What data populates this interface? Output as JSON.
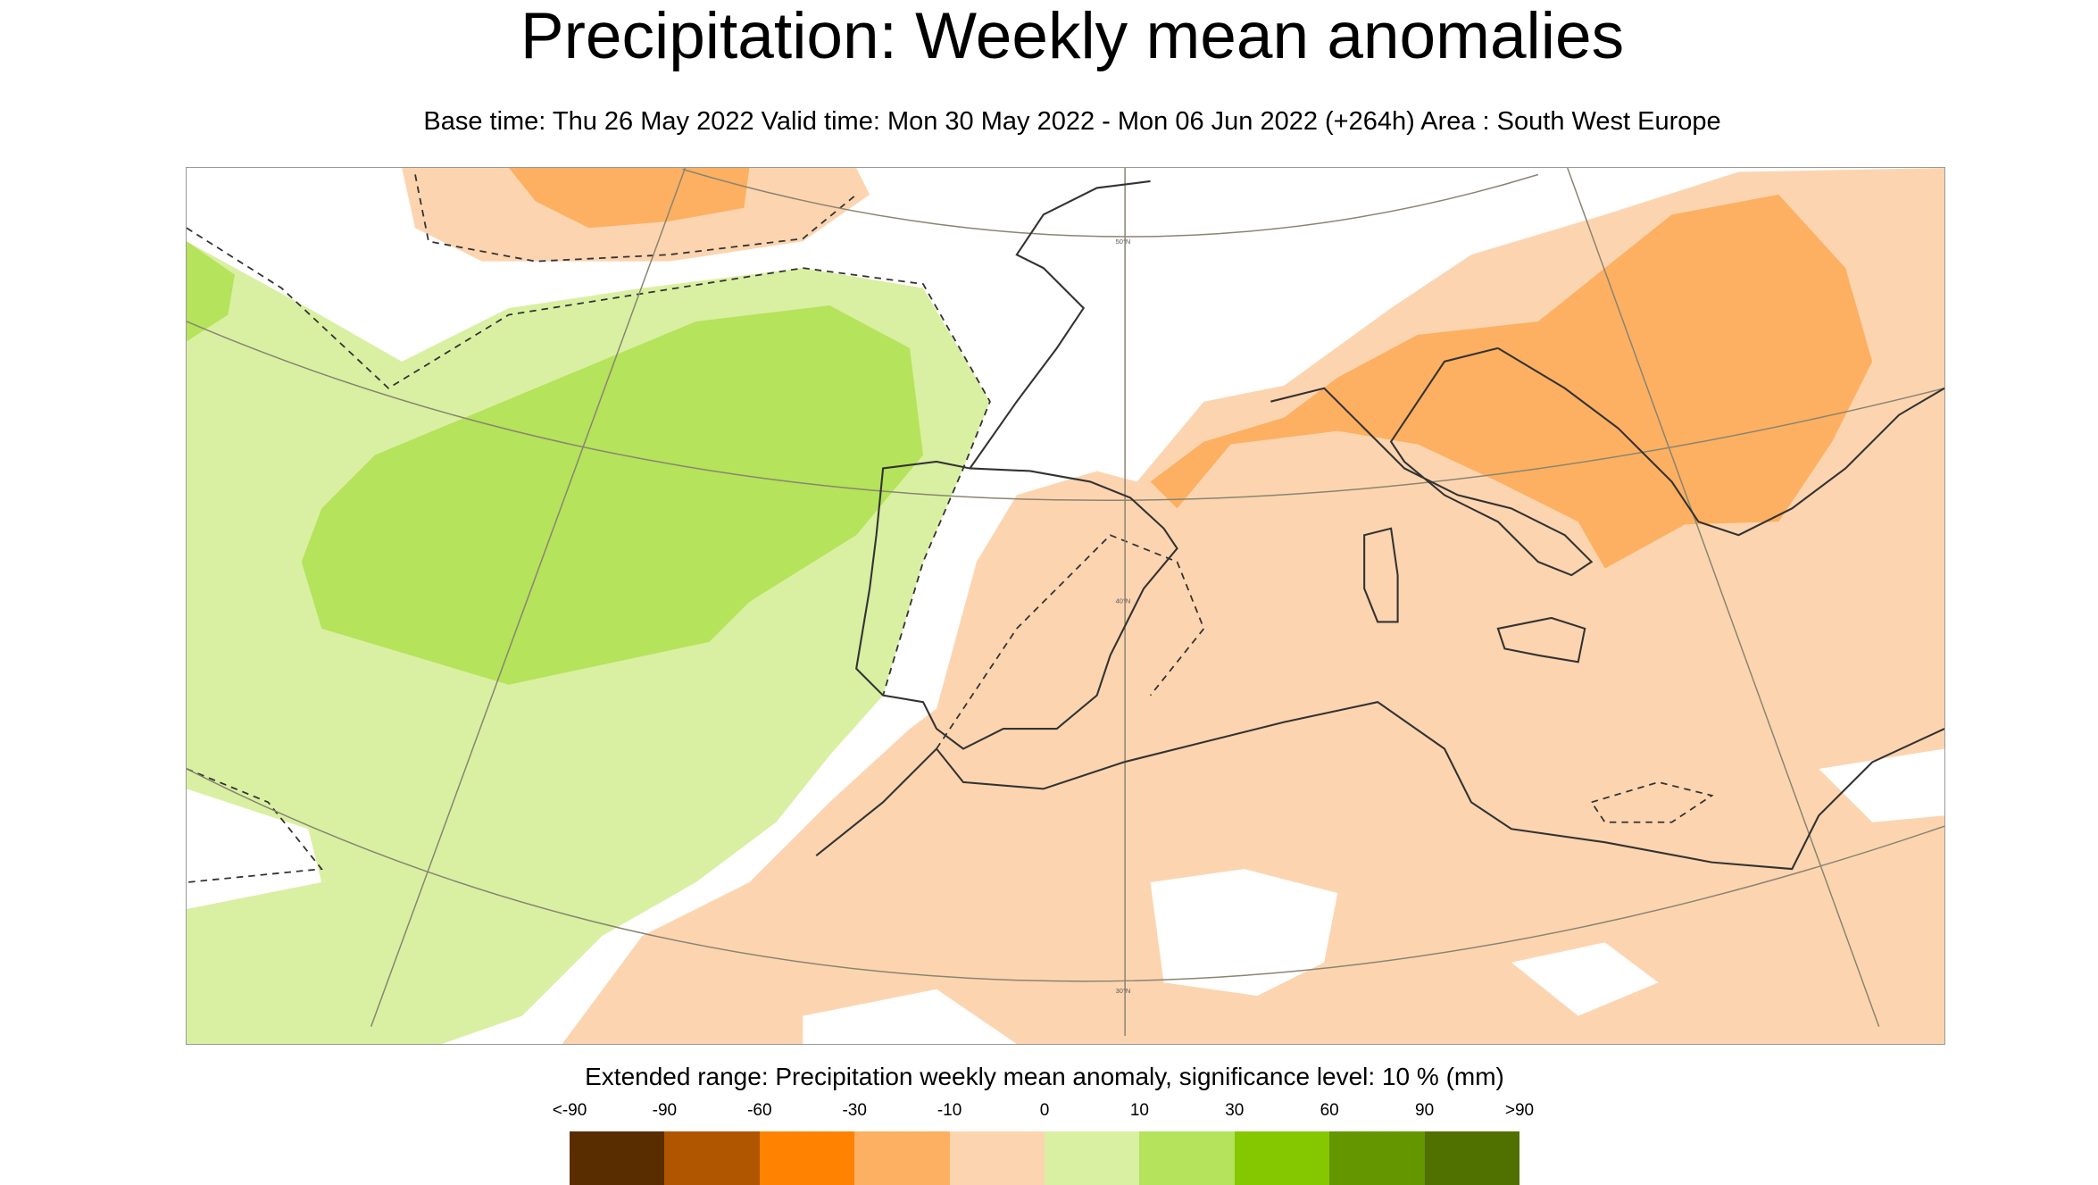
{
  "header": {
    "title": "Precipitation: Weekly mean anomalies",
    "subtitle": "Base time: Thu 26 May 2022 Valid time: Mon 30 May 2022 - Mon 06 Jun 2022 (+264h) Area : South West Europe"
  },
  "map": {
    "area": "South West Europe",
    "latitude_labels": [
      "50°N",
      "40°N",
      "30°N"
    ],
    "colors": {
      "light_green": "#d9f0a3",
      "green": "#b5e35c",
      "light_orange": "#fcd5b0",
      "orange": "#fdb062",
      "no_signal": "#ffffff"
    }
  },
  "legend": {
    "title": "Extended range: Precipitation weekly mean anomaly, significance level: 10 % (mm)",
    "labels": [
      "<-90",
      "-90",
      "-60",
      "-30",
      "-10",
      "0",
      "10",
      "30",
      "60",
      "90",
      ">90"
    ],
    "colors": [
      "#5a2d00",
      "#b05500",
      "#ff8200",
      "#fdb062",
      "#fcd5b0",
      "#d9f0a3",
      "#b5e35c",
      "#86c800",
      "#649600",
      "#507000"
    ]
  }
}
